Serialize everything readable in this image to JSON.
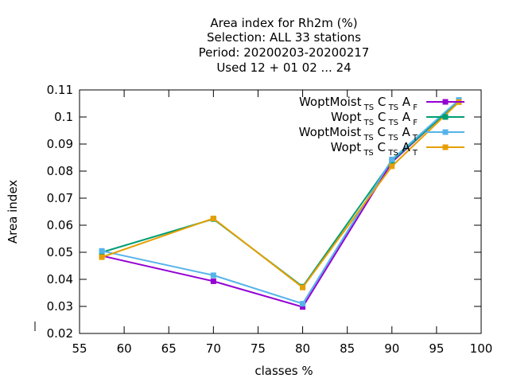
{
  "chart_data": {
    "type": "line",
    "title_lines": [
      "Area index  for Rh2m (%)",
      "Selection: ALL     33 stations",
      "Period: 20200203-20200217",
      "Used  12 + 01 02 ... 24"
    ],
    "xlabel": "classes %",
    "ylabel": "Area index",
    "xlim": [
      55,
      100
    ],
    "ylim": [
      0.02,
      0.11
    ],
    "xticks": [
      "55",
      "60",
      "65",
      "70",
      "75",
      "80",
      "85",
      "90",
      "95",
      "100"
    ],
    "yticks": [
      "0.02",
      "0.03",
      "0.04",
      "0.05",
      "0.06",
      "0.07",
      "0.08",
      "0.09",
      "0.1",
      "0.11"
    ],
    "grid": false,
    "legend_position": "top-right",
    "x": [
      57.5,
      70,
      80,
      90,
      97.5
    ],
    "series": [
      {
        "name": "WoptMoist",
        "sub1": "TS",
        "sub2": "TS",
        "sub3": "F",
        "color": "#9400d3",
        "values": [
          0.0487,
          0.0393,
          0.0298,
          0.0833,
          0.106
        ]
      },
      {
        "name": "Wopt",
        "sub1": "TS",
        "sub2": "TS",
        "sub3": "F",
        "color": "#009e73",
        "values": [
          0.05,
          0.0623,
          0.0373,
          0.0838,
          0.1057
        ]
      },
      {
        "name": "WoptMoist",
        "sub1": "TS",
        "sub2": "TS",
        "sub3": "T",
        "color": "#56b4e9",
        "values": [
          0.0505,
          0.0415,
          0.031,
          0.0843,
          0.1063
        ]
      },
      {
        "name": "Wopt",
        "sub1": "TS",
        "sub2": "TS",
        "sub3": "T",
        "color": "#e69f00",
        "values": [
          0.0482,
          0.0625,
          0.037,
          0.0818,
          0.1055
        ]
      }
    ]
  }
}
